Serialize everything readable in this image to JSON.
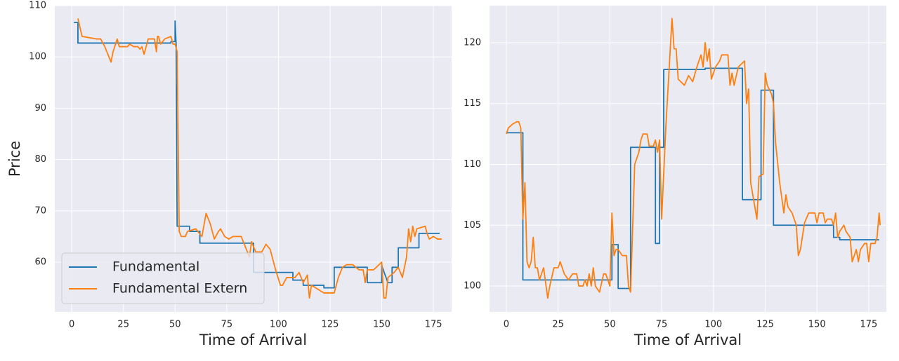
{
  "chart_data": [
    {
      "type": "line",
      "xlabel": "Time of Arrival",
      "ylabel": "Price",
      "xlim": [
        -8.2,
        183.8
      ],
      "ylim": [
        50.3,
        110
      ],
      "xticks": [
        0,
        25,
        50,
        75,
        100,
        125,
        150,
        175
      ],
      "yticks": [
        60,
        70,
        80,
        90,
        100,
        110
      ],
      "grid": true,
      "legend": "lower left",
      "series": [
        {
          "name": "Fundamental",
          "color": "#1f77b4",
          "x": [
            1,
            3,
            3,
            48,
            48,
            50,
            50,
            50.5,
            51,
            57,
            57,
            62,
            62,
            88,
            88,
            107,
            107,
            112,
            112,
            122,
            122,
            127,
            127,
            143,
            143,
            150,
            150,
            153,
            155,
            155,
            158,
            158,
            168,
            168,
            178
          ],
          "values": [
            106.7,
            106.7,
            102.7,
            102.7,
            103,
            103,
            107,
            102.5,
            67,
            67,
            66,
            66,
            63.7,
            63.7,
            58,
            58,
            56.5,
            56.5,
            55.5,
            55.5,
            55,
            55,
            59,
            59,
            56,
            56,
            59.3,
            56,
            56,
            59,
            59,
            62.8,
            62.8,
            65.6,
            65.6
          ]
        },
        {
          "name": "Fundamental Extern",
          "color": "#ff7f0e",
          "x": [
            3,
            5,
            12,
            14,
            16,
            19,
            20,
            22,
            23,
            27,
            28,
            30,
            32,
            33,
            34,
            35,
            37,
            40,
            41,
            41.5,
            42,
            43,
            45,
            48,
            49,
            50,
            51,
            52,
            53,
            55,
            56,
            60,
            63,
            65,
            67,
            69,
            71,
            72,
            74,
            76,
            78,
            82,
            84,
            86,
            87,
            89,
            92,
            94,
            96,
            99,
            101,
            102,
            104,
            108,
            110,
            112,
            114,
            115,
            116,
            118,
            120,
            122,
            125,
            127,
            129,
            131,
            133,
            136,
            139,
            141,
            142,
            143,
            146,
            150,
            151,
            152,
            153,
            156,
            158,
            160,
            162,
            163,
            164,
            165,
            166,
            167,
            171,
            172,
            173,
            175,
            177,
            179
          ],
          "values": [
            107.5,
            104,
            103.5,
            103.5,
            102,
            99,
            101,
            103.5,
            102,
            102,
            102.5,
            102,
            102,
            101.5,
            102,
            100.5,
            103.5,
            103.5,
            101,
            104,
            104,
            102.5,
            103.5,
            104,
            102.5,
            102.5,
            101,
            66,
            65,
            65,
            66,
            66.5,
            65,
            69.5,
            67.5,
            64.5,
            66,
            66.5,
            65,
            64.5,
            65,
            65,
            63,
            61,
            64,
            62,
            62,
            63.5,
            62.5,
            58,
            55.5,
            55.5,
            57,
            57,
            58,
            56,
            57.5,
            53,
            55.5,
            55,
            54.5,
            54,
            54,
            54,
            57,
            59,
            59.5,
            59.5,
            58.5,
            58.5,
            56,
            58.5,
            58.5,
            60,
            53,
            53,
            57,
            58,
            59,
            57,
            61,
            66.5,
            64,
            67,
            65,
            66.5,
            67,
            65.5,
            64.5,
            65,
            64.5,
            64.5
          ]
        }
      ]
    },
    {
      "type": "line",
      "xlabel": "Time of Arrival",
      "xlim": [
        -8.1,
        183.5
      ],
      "ylim": [
        97.87,
        123.05
      ],
      "xticks": [
        0,
        25,
        50,
        75,
        100,
        125,
        150,
        175
      ],
      "yticks": [
        100,
        105,
        110,
        115,
        120
      ],
      "grid": true,
      "series": [
        {
          "color": "#1f77b4",
          "x": [
            0,
            8,
            8,
            51,
            51,
            54,
            54,
            60,
            60,
            72,
            72,
            74,
            74,
            76,
            76,
            96,
            96,
            114,
            114,
            123,
            123,
            129,
            129,
            158,
            158,
            161,
            161,
            180
          ],
          "values": [
            112.6,
            112.6,
            100.5,
            100.5,
            103.4,
            103.4,
            99.8,
            99.8,
            111.4,
            111.4,
            103.5,
            103.5,
            111.4,
            111.4,
            117.8,
            117.8,
            117.9,
            117.9,
            107.1,
            107.1,
            116.1,
            116.1,
            105,
            105,
            104,
            104,
            103.8,
            103.8
          ]
        },
        {
          "color": "#ff7f0e",
          "x": [
            0,
            1,
            3,
            5,
            6,
            7,
            8,
            9,
            10,
            11,
            12,
            13,
            14,
            15,
            16,
            18,
            20,
            21,
            23,
            25,
            26,
            28,
            30,
            32,
            34,
            35,
            37,
            38,
            39,
            40,
            41,
            42,
            43,
            45,
            47,
            48,
            50,
            51,
            52,
            53,
            54,
            56,
            58,
            59,
            60,
            62,
            64,
            65,
            66,
            68,
            69,
            71,
            72,
            73,
            74,
            75,
            77,
            78,
            79,
            80,
            81,
            82,
            83,
            86,
            88,
            90,
            92,
            93,
            94,
            95,
            96,
            97,
            98,
            99,
            101,
            103,
            104,
            107,
            108,
            109,
            110,
            112,
            115,
            116,
            117,
            118,
            120,
            121,
            122,
            124,
            125,
            126,
            128,
            129,
            130,
            132,
            134,
            135,
            136,
            138,
            140,
            141,
            142,
            144,
            146,
            149,
            150,
            151,
            153,
            154,
            155,
            157,
            158,
            159,
            160,
            161,
            163,
            164,
            166,
            167,
            168,
            169,
            170,
            171,
            173,
            174,
            175,
            176,
            178,
            179,
            180,
            180.5
          ],
          "values": [
            112.5,
            113,
            113.3,
            113.5,
            113.5,
            113,
            105.5,
            108.5,
            102,
            101.5,
            102,
            104,
            101.5,
            101.5,
            100.5,
            101.5,
            99,
            100,
            101.5,
            101.5,
            102,
            101,
            100.5,
            101,
            101,
            100,
            100,
            100.5,
            100,
            101,
            100,
            101.5,
            100,
            99.5,
            101,
            101,
            100,
            106,
            102.5,
            103,
            103,
            102.5,
            102.5,
            100,
            99.5,
            110,
            111,
            112,
            112.5,
            112.5,
            111.5,
            111.5,
            112,
            111,
            112,
            105.5,
            113,
            116,
            119,
            122,
            119.5,
            119.5,
            117,
            116.5,
            117.3,
            116.8,
            118,
            118.5,
            119,
            118,
            120,
            118.5,
            119.5,
            117,
            118,
            118.5,
            119,
            119,
            116.5,
            117.5,
            116.5,
            118,
            118.5,
            115,
            116.2,
            108.5,
            106.5,
            105.5,
            109,
            109.2,
            117.5,
            116.5,
            115.8,
            115,
            111.8,
            108.5,
            106,
            107.5,
            106.5,
            106,
            105,
            102.5,
            103,
            105.2,
            106,
            106,
            105.2,
            106,
            106,
            105.2,
            105.5,
            105.5,
            105,
            106,
            104,
            104.5,
            105,
            104.5,
            104,
            102,
            102.5,
            103,
            102,
            103,
            103.5,
            103.5,
            102,
            103.5,
            103.5,
            104,
            106,
            105
          ]
        }
      ]
    }
  ]
}
